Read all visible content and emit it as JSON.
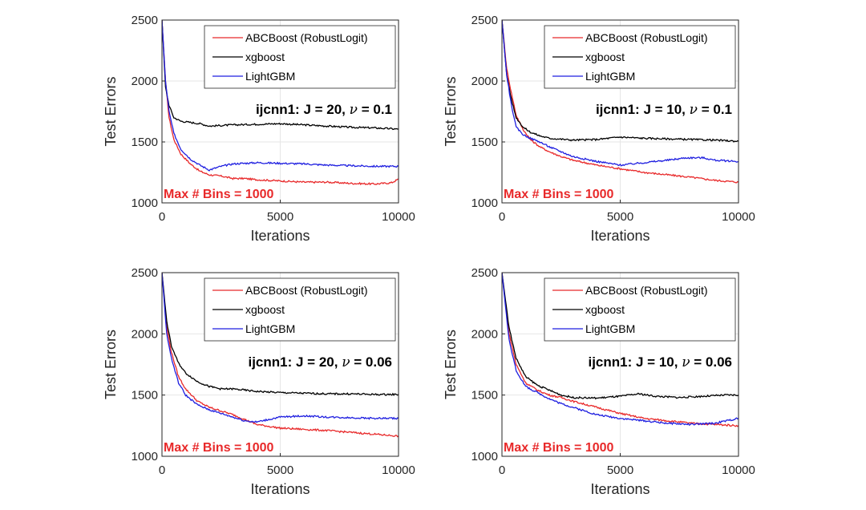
{
  "chart_data": [
    {
      "type": "line",
      "title": "ijcnn1: J = 20, ν = 0.1",
      "annotation": {
        "prefix": "ijcnn1: J = 20, ",
        "nu": "ν",
        "suffix": " = 0.1"
      },
      "bins_label": "Max # Bins =  1000",
      "xlabel": "Iterations",
      "ylabel": "Test Errors",
      "xlim": [
        0,
        10000
      ],
      "ylim": [
        1000,
        2500
      ],
      "xticks": [
        0,
        5000,
        10000
      ],
      "yticks": [
        1000,
        1500,
        2000,
        2500
      ],
      "grid": true,
      "legend_position": "top-right",
      "series": [
        {
          "name": "ABCBoost (RobustLogit)",
          "color": "#e8292a",
          "x": [
            0,
            150,
            300,
            500,
            800,
            1200,
            1600,
            2000,
            2500,
            3000,
            3500,
            4000,
            5000,
            6000,
            7000,
            8000,
            9000,
            9700,
            10000
          ],
          "y": [
            2500,
            2000,
            1700,
            1520,
            1400,
            1320,
            1260,
            1230,
            1220,
            1200,
            1200,
            1190,
            1180,
            1170,
            1170,
            1160,
            1155,
            1165,
            1195
          ]
        },
        {
          "name": "xgboost",
          "color": "#000000",
          "x": [
            0,
            150,
            300,
            500,
            800,
            1200,
            1600,
            2000,
            3000,
            4000,
            5000,
            6000,
            7000,
            8000,
            9000,
            10000
          ],
          "y": [
            2500,
            1950,
            1800,
            1700,
            1670,
            1660,
            1650,
            1630,
            1640,
            1645,
            1650,
            1640,
            1630,
            1620,
            1615,
            1605
          ]
        },
        {
          "name": "LightGBM",
          "color": "#1f1fe0",
          "x": [
            0,
            150,
            300,
            500,
            800,
            1200,
            1600,
            2000,
            2500,
            3000,
            4000,
            5000,
            6000,
            7000,
            8000,
            9000,
            10000
          ],
          "y": [
            2500,
            2000,
            1750,
            1570,
            1440,
            1360,
            1310,
            1270,
            1300,
            1320,
            1330,
            1325,
            1320,
            1310,
            1305,
            1300,
            1300
          ]
        }
      ]
    },
    {
      "type": "line",
      "title": "ijcnn1: J = 10, ν = 0.1",
      "annotation": {
        "prefix": "ijcnn1: J = 10, ",
        "nu": "ν",
        "suffix": " = 0.1"
      },
      "bins_label": "Max # Bins =  1000",
      "xlabel": "Iterations",
      "ylabel": "Test Errors",
      "xlim": [
        0,
        10000
      ],
      "ylim": [
        1000,
        2500
      ],
      "xticks": [
        0,
        5000,
        10000
      ],
      "yticks": [
        1000,
        1500,
        2000,
        2500
      ],
      "grid": true,
      "legend_position": "top-right",
      "series": [
        {
          "name": "ABCBoost (RobustLogit)",
          "color": "#e8292a",
          "x": [
            0,
            200,
            400,
            600,
            900,
            1200,
            1600,
            2000,
            2500,
            3000,
            4000,
            5000,
            6000,
            7000,
            8000,
            9000,
            10000
          ],
          "y": [
            2500,
            2100,
            1900,
            1720,
            1600,
            1520,
            1460,
            1420,
            1380,
            1350,
            1310,
            1280,
            1250,
            1230,
            1210,
            1185,
            1170
          ]
        },
        {
          "name": "xgboost",
          "color": "#000000",
          "x": [
            0,
            200,
            400,
            600,
            900,
            1200,
            1600,
            2000,
            3000,
            4000,
            5000,
            6000,
            7000,
            8000,
            9000,
            10000
          ],
          "y": [
            2500,
            2050,
            1850,
            1700,
            1620,
            1580,
            1550,
            1530,
            1515,
            1520,
            1540,
            1530,
            1525,
            1520,
            1515,
            1505
          ]
        },
        {
          "name": "LightGBM",
          "color": "#1f1fe0",
          "x": [
            0,
            200,
            400,
            600,
            900,
            1200,
            1600,
            2000,
            2500,
            3000,
            4000,
            5000,
            6000,
            7000,
            7800,
            8500,
            9000,
            10000
          ],
          "y": [
            2500,
            2050,
            1800,
            1620,
            1560,
            1530,
            1500,
            1460,
            1420,
            1380,
            1340,
            1310,
            1330,
            1350,
            1370,
            1370,
            1350,
            1340
          ]
        }
      ]
    },
    {
      "type": "line",
      "title": "ijcnn1: J = 20, ν = 0.06",
      "annotation": {
        "prefix": "ijcnn1: J = 20, ",
        "nu": "ν",
        "suffix": " = 0.06"
      },
      "bins_label": "Max # Bins =  1000",
      "xlabel": "Iterations",
      "ylabel": "Test Errors",
      "xlim": [
        0,
        10000
      ],
      "ylim": [
        1000,
        2500
      ],
      "xticks": [
        0,
        5000,
        10000
      ],
      "yticks": [
        1000,
        1500,
        2000,
        2500
      ],
      "grid": true,
      "legend_position": "top-right",
      "series": [
        {
          "name": "ABCBoost (RobustLogit)",
          "color": "#e8292a",
          "x": [
            0,
            200,
            400,
            700,
            1000,
            1500,
            2000,
            2500,
            3000,
            3500,
            4000,
            5000,
            6000,
            7000,
            8000,
            9000,
            10000
          ],
          "y": [
            2500,
            2050,
            1850,
            1650,
            1550,
            1450,
            1400,
            1370,
            1340,
            1300,
            1260,
            1230,
            1220,
            1210,
            1195,
            1180,
            1165
          ]
        },
        {
          "name": "xgboost",
          "color": "#000000",
          "x": [
            0,
            200,
            400,
            700,
            1000,
            1500,
            2000,
            2500,
            3000,
            4000,
            5000,
            6000,
            7000,
            8000,
            9000,
            10000
          ],
          "y": [
            2500,
            2100,
            1900,
            1760,
            1680,
            1610,
            1570,
            1550,
            1550,
            1530,
            1520,
            1515,
            1510,
            1510,
            1505,
            1505
          ]
        },
        {
          "name": "LightGBM",
          "color": "#1f1fe0",
          "x": [
            0,
            200,
            400,
            700,
            1000,
            1500,
            2000,
            2500,
            3000,
            3500,
            4000,
            5000,
            6000,
            7000,
            8000,
            9000,
            10000
          ],
          "y": [
            2500,
            2000,
            1800,
            1600,
            1500,
            1420,
            1380,
            1350,
            1320,
            1290,
            1280,
            1320,
            1330,
            1320,
            1315,
            1310,
            1310
          ]
        }
      ]
    },
    {
      "type": "line",
      "title": "ijcnn1: J = 10, ν = 0.06",
      "annotation": {
        "prefix": "ijcnn1: J = 10, ",
        "nu": "ν",
        "suffix": " = 0.06"
      },
      "bins_label": "Max # Bins =  1000",
      "xlabel": "Iterations",
      "ylabel": "Test Errors",
      "xlim": [
        0,
        10000
      ],
      "ylim": [
        1000,
        2500
      ],
      "xticks": [
        0,
        5000,
        10000
      ],
      "yticks": [
        1000,
        1500,
        2000,
        2500
      ],
      "grid": true,
      "legend_position": "top-right",
      "series": [
        {
          "name": "ABCBoost (RobustLogit)",
          "color": "#e8292a",
          "x": [
            0,
            300,
            600,
            1000,
            1500,
            2000,
            2500,
            3000,
            4000,
            5000,
            6000,
            7000,
            8000,
            9000,
            10000
          ],
          "y": [
            2500,
            2000,
            1750,
            1600,
            1540,
            1500,
            1480,
            1450,
            1400,
            1350,
            1310,
            1290,
            1270,
            1260,
            1250
          ]
        },
        {
          "name": "xgboost",
          "color": "#000000",
          "x": [
            0,
            300,
            600,
            1000,
            1500,
            2000,
            2500,
            3000,
            4000,
            5000,
            5800,
            6500,
            7500,
            8500,
            9500,
            10000
          ],
          "y": [
            2500,
            2050,
            1800,
            1650,
            1580,
            1540,
            1500,
            1480,
            1475,
            1490,
            1510,
            1490,
            1480,
            1490,
            1500,
            1500
          ]
        },
        {
          "name": "LightGBM",
          "color": "#1f1fe0",
          "x": [
            0,
            300,
            600,
            1000,
            1500,
            2000,
            2500,
            3000,
            4000,
            5000,
            6000,
            7000,
            8000,
            9000,
            10000
          ],
          "y": [
            2500,
            1950,
            1700,
            1570,
            1520,
            1470,
            1430,
            1400,
            1340,
            1310,
            1290,
            1270,
            1260,
            1270,
            1310
          ]
        }
      ]
    }
  ]
}
